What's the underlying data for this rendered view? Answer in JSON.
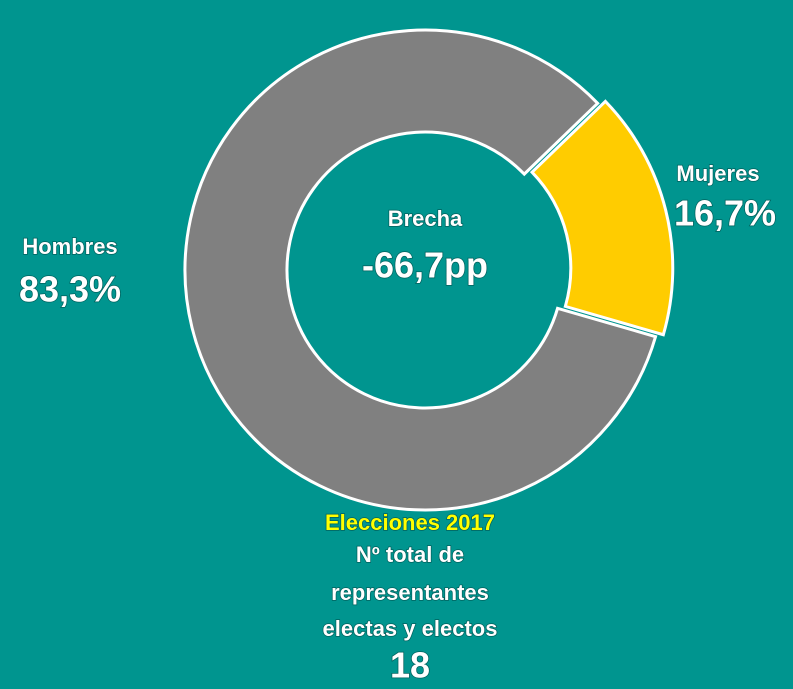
{
  "chart_data": {
    "type": "pie",
    "categories": [
      "Mujeres",
      "Hombres"
    ],
    "values": [
      16.7,
      83.3
    ],
    "value_labels": [
      "16,7%",
      "83,3%"
    ],
    "colors": [
      "#ffcc00",
      "#808080"
    ],
    "center_title": "Brecha",
    "center_value": "-66,7pp",
    "subtitle": "Elecciones 2017",
    "annotation": [
      "Nº total de",
      "representantes",
      "electas y electos"
    ],
    "total": 18
  }
}
